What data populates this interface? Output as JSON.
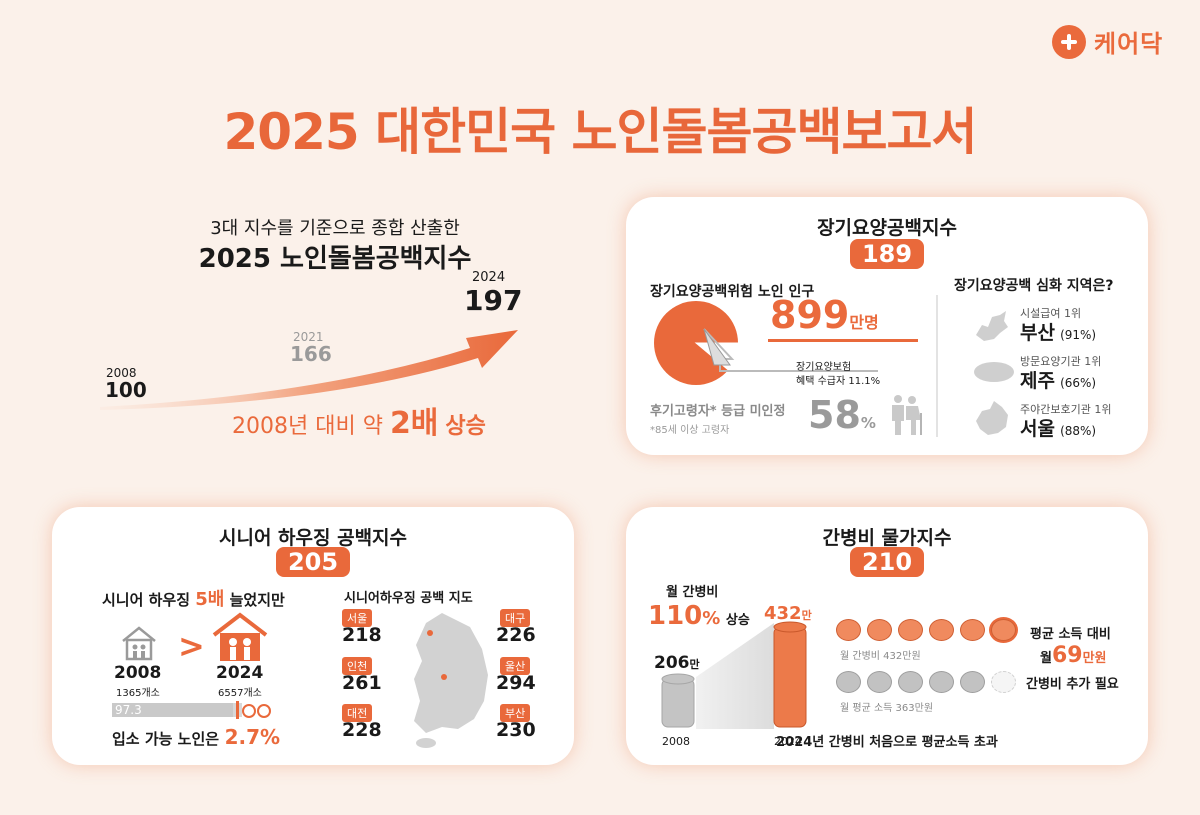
{
  "brand": {
    "name": "케어닥"
  },
  "title": "2025 대한민국 노인돌봄공백보고서",
  "intro": {
    "subtitle": "3대 지수를 기준으로 종합 산출한",
    "headline": "2025 노인돌봄공백지수",
    "points": [
      {
        "year": "2008",
        "value": "100"
      },
      {
        "year": "2021",
        "value": "166"
      },
      {
        "year": "2024",
        "value": "197"
      }
    ],
    "growth_prefix": "2008년 대비 약",
    "growth_value": "2배",
    "growth_suffix": "상승"
  },
  "ltc": {
    "title": "장기요양공백지수",
    "index": "189",
    "pop_heading": "장기요양공백위험 노인 인구",
    "pop_number": "899",
    "pop_unit": "만명",
    "benefit_line1": "장기요양보험",
    "benefit_line2": "혜택 수급자",
    "benefit_pct": "11.1%",
    "benefit_share": 0.111,
    "unrated_label": "후기고령자* 등급 미인정",
    "unrated_pct": "58",
    "unrated_unit": "%",
    "footnote": "*85세 이상 고령자",
    "regions_heading": "장기요양공백 심화 지역은?",
    "regions": [
      {
        "label": "시설급여 1위",
        "name": "부산",
        "pct": "(91%)"
      },
      {
        "label": "방문요양기관 1위",
        "name": "제주",
        "pct": "(66%)"
      },
      {
        "label": "주야간보호기관 1위",
        "name": "서울",
        "pct": "(88%)"
      }
    ]
  },
  "housing": {
    "title": "시니어 하우징 공백지수",
    "index": "205",
    "growth_prefix": "시니어 하우징",
    "growth_value": "5배",
    "growth_suffix": "늘었지만",
    "y2008": "2008",
    "y2008_count": "1365개소",
    "y2024": "2024",
    "y2024_count": "6557개소",
    "bar_value": "97.3",
    "bar_share": 0.973,
    "admit_prefix": "입소 가능 노인은",
    "admit_value": "2.7%",
    "map_heading": "시니어하우징 공백 지도",
    "cities": [
      {
        "name": "서울",
        "value": "218"
      },
      {
        "name": "인천",
        "value": "261"
      },
      {
        "name": "대전",
        "value": "228"
      },
      {
        "name": "대구",
        "value": "226"
      },
      {
        "name": "울산",
        "value": "294"
      },
      {
        "name": "부산",
        "value": "230"
      }
    ]
  },
  "care_cost": {
    "title": "간병비 물가지수",
    "index": "210",
    "monthly_label": "월 간병비",
    "rise_value": "110",
    "rise_unit": "%",
    "rise_suffix": "상승",
    "cost_2008": "206",
    "cost_2008_unit": "만",
    "cost_2024": "432",
    "cost_2024_unit": "만",
    "year_2008": "2008",
    "year_2024": "2024",
    "coins_orange_label": "월 간병비 432만원",
    "coins_grey_label": "월 평균 소득 363만원",
    "right_line1": "평균 소득 대비",
    "right_prefix": "월",
    "right_value": "69",
    "right_unit": "만원",
    "right_line3": "간병비 추가 필요",
    "footer": "2024년 간병비 처음으로 평균소득 초과"
  },
  "colors": {
    "accent": "#e9693b",
    "accent_light": "#f6c9b5",
    "grey": "#9a9a9a",
    "background": "#fbf1ea"
  }
}
